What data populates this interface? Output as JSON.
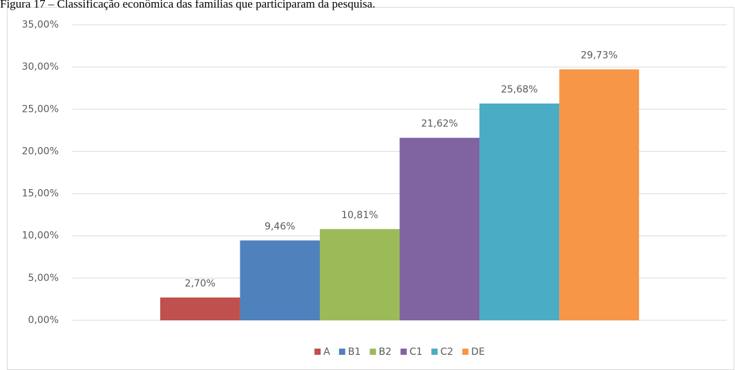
{
  "chart_data": {
    "type": "bar",
    "title": "Figura 17 – Classificação econômica das famílias que participaram da pesquisa.",
    "categories": [
      null
    ],
    "series": [
      {
        "name": "A",
        "color": "#c0504d",
        "values": [
          2.7
        ],
        "value_labels": [
          "2,70%"
        ]
      },
      {
        "name": "B1",
        "color": "#4f81bd",
        "values": [
          9.46
        ],
        "value_labels": [
          "9,46%"
        ]
      },
      {
        "name": "B2",
        "color": "#9bbb59",
        "values": [
          10.81
        ],
        "value_labels": [
          "10,81%"
        ]
      },
      {
        "name": "C1",
        "color": "#8064a2",
        "values": [
          21.62
        ],
        "value_labels": [
          "21,62%"
        ]
      },
      {
        "name": "C2",
        "color": "#4bacc6",
        "values": [
          25.68
        ],
        "value_labels": [
          "25,68%"
        ]
      },
      {
        "name": "DE",
        "color": "#f79646",
        "values": [
          29.73
        ],
        "value_labels": [
          "29,73%"
        ]
      }
    ],
    "ylim": [
      0,
      35
    ],
    "yticks": [
      {
        "value": 0,
        "label": "0,00%"
      },
      {
        "value": 5,
        "label": "5,00%"
      },
      {
        "value": 10,
        "label": "10,00%"
      },
      {
        "value": 15,
        "label": "15,00%"
      },
      {
        "value": 20,
        "label": "20,00%"
      },
      {
        "value": 25,
        "label": "25,00%"
      },
      {
        "value": 30,
        "label": "30,00%"
      },
      {
        "value": 35,
        "label": "35,00%"
      }
    ],
    "grid": true,
    "legend": "bottom"
  }
}
